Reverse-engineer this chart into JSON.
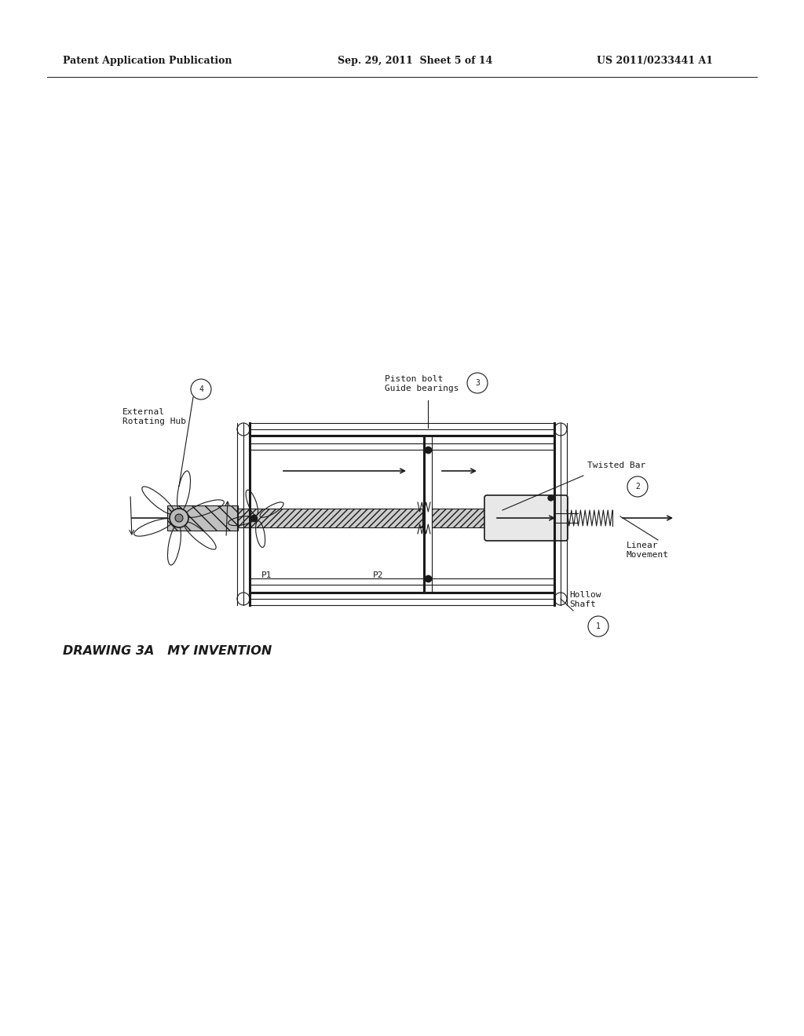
{
  "bg_color": "#ffffff",
  "line_color": "#1a1a1a",
  "title_header_left": "Patent Application Publication",
  "title_header_center": "Sep. 29, 2011  Sheet 5 of 14",
  "title_header_right": "US 2011/0233441 A1",
  "caption": "DRAWING 3A   MY INVENTION",
  "label_1": "Hollow\nShaft",
  "label_2": "Twisted Bar",
  "label_3": "Piston bolt\nGuide bearings",
  "label_4": "External\nRotating Hub",
  "label_P1": "P1",
  "label_P2": "P2",
  "label_linear": "Linear\nMovement"
}
